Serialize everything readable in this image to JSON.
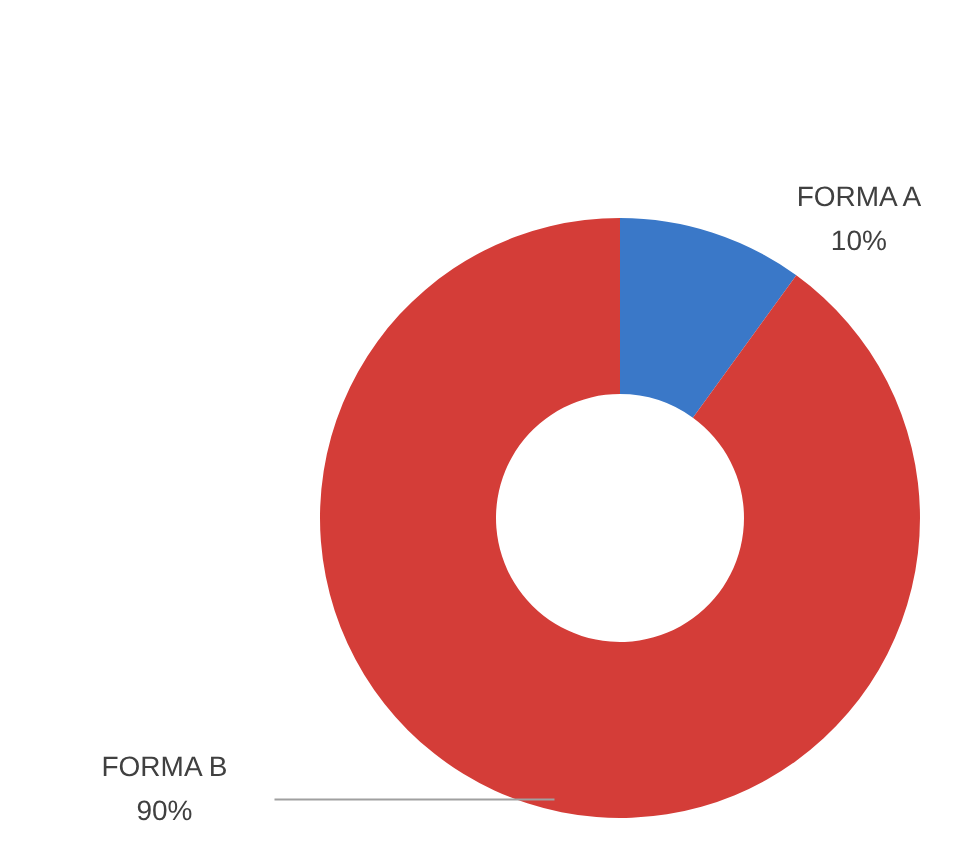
{
  "chart_data": {
    "type": "donut",
    "categories": [
      "FORMA A",
      "FORMA B"
    ],
    "values": [
      10,
      90
    ],
    "value_labels": [
      "10%",
      "90%"
    ],
    "colors": [
      "#3a78c8",
      "#d43d38"
    ]
  }
}
